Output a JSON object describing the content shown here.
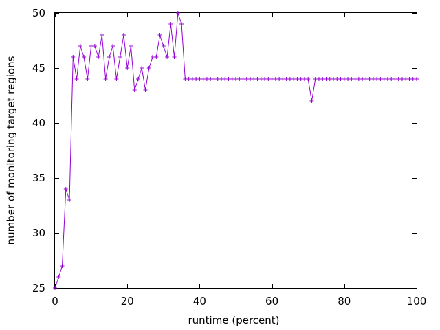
{
  "chart_data": {
    "type": "line",
    "title": "",
    "xlabel": "runtime (percent)",
    "ylabel": "number of monitoring target regions",
    "xlim": [
      0,
      100
    ],
    "ylim": [
      25,
      50
    ],
    "xticks": [
      0,
      20,
      40,
      60,
      80,
      100
    ],
    "yticks": [
      25,
      30,
      35,
      40,
      45,
      50
    ],
    "grid": false,
    "legend": "none",
    "series": [
      {
        "color": "#9400d3",
        "marker": "plus",
        "x": [
          0,
          1,
          2,
          3,
          4,
          5,
          6,
          7,
          8,
          9,
          10,
          11,
          12,
          13,
          14,
          15,
          16,
          17,
          18,
          19,
          20,
          21,
          22,
          23,
          24,
          25,
          26,
          27,
          28,
          29,
          30,
          31,
          32,
          33,
          34,
          35,
          36,
          37,
          38,
          39,
          40,
          41,
          42,
          43,
          44,
          45,
          46,
          47,
          48,
          49,
          50,
          51,
          52,
          53,
          54,
          55,
          56,
          57,
          58,
          59,
          60,
          61,
          62,
          63,
          64,
          65,
          66,
          67,
          68,
          69,
          70,
          71,
          72,
          73,
          74,
          75,
          76,
          77,
          78,
          79,
          80,
          81,
          82,
          83,
          84,
          85,
          86,
          87,
          88,
          89,
          90,
          91,
          92,
          93,
          94,
          95,
          96,
          97,
          98,
          99,
          100
        ],
        "y": [
          25,
          26,
          27,
          34,
          33,
          46,
          44,
          47,
          46,
          44,
          47,
          47,
          46,
          48,
          44,
          46,
          47,
          44,
          46,
          48,
          45,
          47,
          43,
          44,
          45,
          43,
          45,
          46,
          46,
          48,
          47,
          46,
          49,
          46,
          50,
          49,
          44,
          44,
          44,
          44,
          44,
          44,
          44,
          44,
          44,
          44,
          44,
          44,
          44,
          44,
          44,
          44,
          44,
          44,
          44,
          44,
          44,
          44,
          44,
          44,
          44,
          44,
          44,
          44,
          44,
          44,
          44,
          44,
          44,
          44,
          44,
          42,
          44,
          44,
          44,
          44,
          44,
          44,
          44,
          44,
          44,
          44,
          44,
          44,
          44,
          44,
          44,
          44,
          44,
          44,
          44,
          44,
          44,
          44,
          44,
          44,
          44,
          44,
          44,
          44,
          44
        ]
      }
    ]
  }
}
